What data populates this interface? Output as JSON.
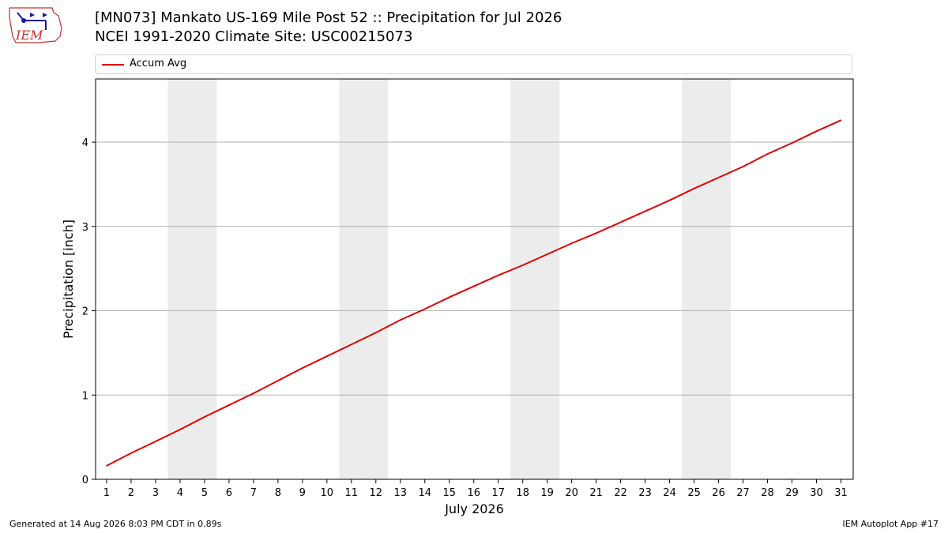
{
  "header": {
    "title_line1": "[MN073] Mankato US-169 Mile Post 52 :: Precipitation for Jul 2026",
    "title_line2": "NCEI 1991-2020 Climate Site: USC00215073",
    "logo_text": "IEM"
  },
  "footer": {
    "generated": "Generated at 14 Aug 2026 8:03 PM CDT in 0.89s",
    "app": "IEM Autoplot App #17"
  },
  "colors": {
    "series": "#e00000",
    "weekend_band": "#ececec",
    "grid": "#b0b0b0"
  },
  "chart_data": {
    "type": "line",
    "title": "[MN073] Mankato US-169 Mile Post 52 :: Precipitation for Jul 2026",
    "subtitle": "NCEI 1991-2020 Climate Site: USC00215073",
    "xlabel": "July 2026",
    "ylabel": "Precipitation [inch]",
    "x": [
      1,
      2,
      3,
      4,
      5,
      6,
      7,
      8,
      9,
      10,
      11,
      12,
      13,
      14,
      15,
      16,
      17,
      18,
      19,
      20,
      21,
      22,
      23,
      24,
      25,
      26,
      27,
      28,
      29,
      30,
      31
    ],
    "x_tick_labels": [
      "1",
      "2",
      "3",
      "4",
      "5",
      "6",
      "7",
      "8",
      "9",
      "10",
      "11",
      "12",
      "13",
      "14",
      "15",
      "16",
      "17",
      "18",
      "19",
      "20",
      "21",
      "22",
      "23",
      "24",
      "25",
      "26",
      "27",
      "28",
      "29",
      "30",
      "31"
    ],
    "y_ticks": [
      0,
      1,
      2,
      3,
      4
    ],
    "ylim": [
      0,
      4.75
    ],
    "xlim": [
      0.55,
      31.5
    ],
    "grid": "horizontal",
    "legend_position": "top",
    "series": [
      {
        "name": "Accum Avg",
        "color": "#e00000",
        "values": [
          0.16,
          0.31,
          0.45,
          0.59,
          0.74,
          0.88,
          1.02,
          1.17,
          1.32,
          1.46,
          1.6,
          1.74,
          1.89,
          2.02,
          2.16,
          2.29,
          2.42,
          2.54,
          2.67,
          2.8,
          2.92,
          3.05,
          3.18,
          3.31,
          3.45,
          3.58,
          3.71,
          3.86,
          3.99,
          4.13,
          4.26
        ]
      }
    ],
    "weekend_bands": [
      [
        3.5,
        5.5
      ],
      [
        10.5,
        12.5
      ],
      [
        17.5,
        19.5
      ],
      [
        24.5,
        26.5
      ]
    ]
  }
}
